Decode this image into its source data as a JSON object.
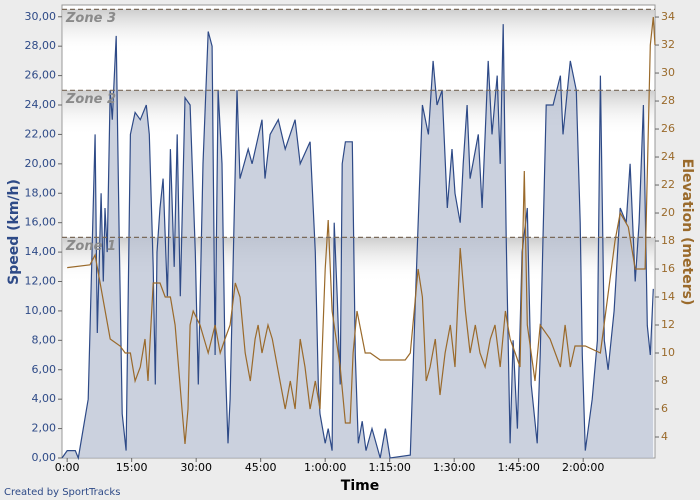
{
  "chart_data": {
    "type": "area-line",
    "x_label": "Time",
    "y_label": "Speed (km/h)",
    "y2_label": "Elevation (meters)",
    "credit": "Created by SportTracks",
    "xlim": [
      -1.2,
      136.7
    ],
    "ylim": [
      0,
      30.8
    ],
    "y2lim": [
      2.5,
      34.86
    ],
    "xticks": [
      {
        "value": 0,
        "label": "0:00"
      },
      {
        "value": 15,
        "label": "15:00"
      },
      {
        "value": 30,
        "label": "30:00"
      },
      {
        "value": 45,
        "label": "45:00"
      },
      {
        "value": 60,
        "label": "1:00:00"
      },
      {
        "value": 75,
        "label": "1:15:00"
      },
      {
        "value": 90,
        "label": "1:30:00"
      },
      {
        "value": 105,
        "label": "1:45:00"
      },
      {
        "value": 120,
        "label": "2:00:00"
      }
    ],
    "yticks": [
      {
        "value": 0,
        "label": "0,00"
      },
      {
        "value": 2,
        "label": "2,00"
      },
      {
        "value": 4,
        "label": "4,00"
      },
      {
        "value": 6,
        "label": "6,00"
      },
      {
        "value": 8,
        "label": "8,00"
      },
      {
        "value": 10,
        "label": "10,00"
      },
      {
        "value": 12,
        "label": "12,00"
      },
      {
        "value": 14,
        "label": "14,00"
      },
      {
        "value": 16,
        "label": "16,00"
      },
      {
        "value": 18,
        "label": "18,00"
      },
      {
        "value": 20,
        "label": "20,00"
      },
      {
        "value": 22,
        "label": "22,00"
      },
      {
        "value": 24,
        "label": "24,00"
      },
      {
        "value": 26,
        "label": "26,00"
      },
      {
        "value": 28,
        "label": "28,00"
      },
      {
        "value": 30,
        "label": "30,00"
      }
    ],
    "y2ticks": [
      4,
      6,
      8,
      10,
      12,
      14,
      16,
      18,
      20,
      22,
      24,
      26,
      28,
      30,
      32,
      34
    ],
    "zones": [
      {
        "name": "Zone 1",
        "value": 15
      },
      {
        "name": "Zone 2",
        "value": 25
      },
      {
        "name": "Zone 3",
        "value": 30.5
      }
    ],
    "series": [
      {
        "name": "Speed",
        "color": "#2e4a87",
        "fill": "#b9c1d3",
        "x": [
          -1.2,
          0,
          1.9,
          2.6,
          4.9,
          6.5,
          7,
          7.9,
          8.4,
          8.8,
          9.3,
          10,
          10.5,
          11.4,
          12.1,
          12.8,
          13.7,
          14.7,
          15.8,
          17,
          18.4,
          19.1,
          20,
          20.5,
          20.9,
          21.6,
          22.3,
          23.3,
          24,
          24.9,
          25.6,
          26.3,
          27.4,
          28.6,
          29.8,
          30.5,
          31.6,
          32.8,
          33.7,
          34.4,
          35.1,
          36,
          36.7,
          37.4,
          37.9,
          39.5,
          40.2,
          42.1,
          43,
          45.3,
          46,
          47.2,
          49.1,
          50.7,
          53,
          54.2,
          56.5,
          57.7,
          58.4,
          58.8,
          60,
          60.7,
          61.6,
          62.1,
          62.8,
          63.5,
          63.95,
          64.7,
          66.3,
          67,
          67.7,
          68.6,
          69.5,
          70.9,
          72.8,
          74,
          75.1,
          79.8,
          80.9,
          82.6,
          84,
          85.1,
          86,
          87.2,
          88.4,
          89.5,
          90.2,
          91.4,
          92.1,
          93,
          93.7,
          95.6,
          96.5,
          97.9,
          98.8,
          100,
          100.7,
          101.4,
          102.1,
          103,
          103.7,
          104.7,
          105.8,
          107,
          107.9,
          109.3,
          110,
          111.4,
          113,
          114.7,
          115.3,
          117,
          118.4,
          119.3,
          119.8,
          120.5,
          122.1,
          123.3,
          124,
          124.9,
          125.8,
          127.2,
          128.6,
          130,
          130.9,
          132.1,
          133,
          134,
          134.9,
          135.6,
          136.3
        ],
        "values": [
          0,
          0.5,
          0.5,
          0,
          4,
          22,
          8.5,
          18,
          12,
          17,
          14,
          25,
          23,
          28.7,
          15,
          3,
          0.5,
          22,
          23.5,
          23,
          24,
          22,
          13,
          5,
          14,
          17,
          19,
          11,
          21,
          13,
          22,
          11,
          24.5,
          24,
          14,
          5,
          20,
          29,
          28,
          7,
          25,
          20,
          7,
          1,
          4,
          25,
          19,
          21,
          20,
          23,
          19,
          22,
          23,
          21,
          23,
          20,
          21.5,
          14,
          5,
          3,
          1,
          2,
          0.5,
          16,
          11,
          5,
          20,
          21.5,
          21.5,
          7,
          1,
          2.5,
          0.5,
          2,
          0,
          2,
          0,
          0.2,
          10,
          24,
          22,
          27,
          24,
          25,
          17,
          21,
          18,
          16,
          20,
          24,
          19,
          22,
          17,
          27,
          22,
          26,
          20,
          29.5,
          15,
          1,
          8,
          2,
          14,
          17,
          5,
          1,
          7,
          24,
          24,
          26,
          22,
          27,
          25,
          16,
          7,
          0.5,
          4,
          8,
          26,
          8,
          6,
          10,
          17,
          16,
          20,
          12,
          16,
          24,
          9,
          7,
          11.5
        ]
      },
      {
        "name": "Elevation",
        "color": "#9a6a2b",
        "axis": "y2",
        "x": [
          0,
          5.3,
          6.5,
          10,
          12.3,
          13.5,
          14.7,
          15.8,
          17,
          18.1,
          18.8,
          19.3,
          20,
          21.6,
          22.8,
          24,
          25.1,
          26.7,
          27.4,
          28.1,
          28.6,
          29.3,
          30.9,
          32.8,
          34.4,
          35.6,
          36.7,
          37.9,
          39.1,
          40.2,
          41.4,
          42.6,
          43.7,
          44.4,
          45.3,
          46.7,
          47.7,
          49.5,
          50.7,
          51.9,
          53,
          54.2,
          55.3,
          56.5,
          57.7,
          58.8,
          60,
          60.7,
          61.6,
          63.5,
          64.7,
          65.8,
          66.5,
          67.4,
          69.3,
          70.5,
          72.8,
          78.6,
          79.8,
          81.6,
          82.6,
          83.5,
          84.4,
          85.6,
          86.7,
          87.9,
          89.1,
          90.2,
          91.4,
          92.6,
          93.7,
          94.9,
          96,
          97.2,
          98.4,
          99.5,
          100.7,
          101.9,
          103,
          104.2,
          105.3,
          106.3,
          107,
          108.8,
          110,
          112.3,
          114.7,
          115.8,
          117,
          118.1,
          120.5,
          124,
          127.4,
          128.6,
          130.5,
          132.1,
          134.4,
          135.6,
          136.3,
          136.7
        ],
        "values": [
          16.1,
          16.3,
          17,
          11,
          10.5,
          10,
          10,
          8,
          9,
          11,
          8,
          11,
          15,
          15,
          14,
          14,
          12,
          6,
          3.5,
          6,
          12,
          13,
          12,
          10,
          12,
          10,
          11,
          12,
          15,
          14,
          10,
          8,
          11,
          12,
          10,
          12,
          11,
          8,
          6,
          8,
          6,
          11,
          9,
          6,
          8,
          6,
          16,
          19.5,
          13,
          9,
          5,
          5,
          10,
          13,
          10,
          10,
          9.5,
          9.5,
          10,
          16,
          14,
          8,
          9,
          11,
          7,
          10,
          12,
          9,
          17.5,
          13,
          10,
          12,
          10,
          9,
          11,
          12,
          9,
          13,
          11,
          10,
          9,
          23,
          12,
          8,
          12,
          11,
          9,
          12,
          9,
          10.5,
          10.5,
          10,
          18,
          20,
          19,
          16,
          16,
          32,
          34,
          32
        ]
      }
    ]
  }
}
